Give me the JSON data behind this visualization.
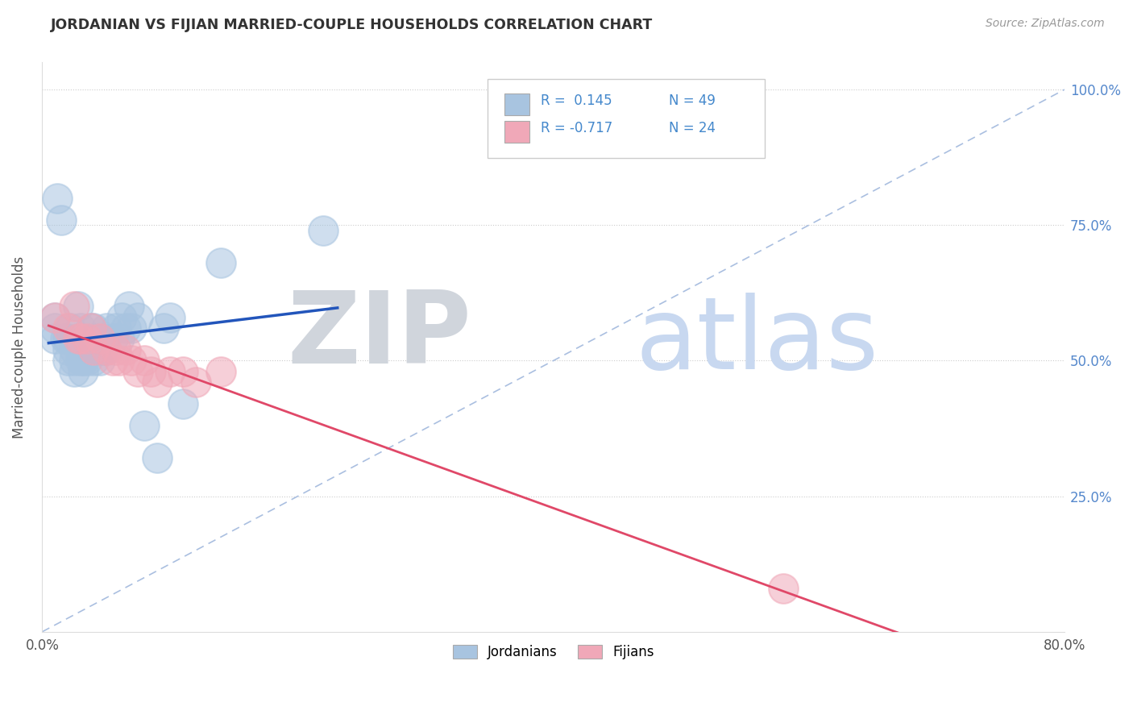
{
  "title": "JORDANIAN VS FIJIAN MARRIED-COUPLE HOUSEHOLDS CORRELATION CHART",
  "source": "Source: ZipAtlas.com",
  "ylabel": "Married-couple Households",
  "xlim": [
    0.0,
    0.8
  ],
  "ylim": [
    0.0,
    1.05
  ],
  "yticks": [
    0.0,
    0.25,
    0.5,
    0.75,
    1.0
  ],
  "yticklabels": [
    "",
    "25.0%",
    "50.0%",
    "75.0%",
    "100.0%"
  ],
  "blue_color": "#a8c4e0",
  "pink_color": "#f0a8b8",
  "blue_line_color": "#2255bb",
  "pink_line_color": "#e04868",
  "diagonal_color": "#aabfe0",
  "jordanians_x": [
    0.01,
    0.01,
    0.01,
    0.012,
    0.015,
    0.018,
    0.02,
    0.02,
    0.02,
    0.022,
    0.025,
    0.025,
    0.025,
    0.028,
    0.028,
    0.03,
    0.03,
    0.03,
    0.03,
    0.032,
    0.032,
    0.035,
    0.035,
    0.038,
    0.038,
    0.04,
    0.04,
    0.04,
    0.042,
    0.045,
    0.045,
    0.048,
    0.05,
    0.05,
    0.055,
    0.058,
    0.06,
    0.062,
    0.065,
    0.068,
    0.07,
    0.075,
    0.08,
    0.09,
    0.095,
    0.1,
    0.11,
    0.14,
    0.22
  ],
  "jordanians_y": [
    0.54,
    0.56,
    0.58,
    0.8,
    0.76,
    0.54,
    0.5,
    0.52,
    0.54,
    0.56,
    0.48,
    0.5,
    0.52,
    0.54,
    0.6,
    0.5,
    0.52,
    0.54,
    0.56,
    0.48,
    0.5,
    0.5,
    0.54,
    0.52,
    0.56,
    0.5,
    0.52,
    0.56,
    0.54,
    0.5,
    0.52,
    0.52,
    0.52,
    0.56,
    0.54,
    0.56,
    0.54,
    0.58,
    0.56,
    0.6,
    0.56,
    0.58,
    0.38,
    0.32,
    0.56,
    0.58,
    0.42,
    0.68,
    0.74
  ],
  "fijians_x": [
    0.01,
    0.02,
    0.025,
    0.028,
    0.03,
    0.035,
    0.038,
    0.04,
    0.045,
    0.05,
    0.055,
    0.058,
    0.06,
    0.065,
    0.07,
    0.075,
    0.08,
    0.085,
    0.09,
    0.1,
    0.11,
    0.12,
    0.14,
    0.58
  ],
  "fijians_y": [
    0.58,
    0.56,
    0.6,
    0.54,
    0.54,
    0.54,
    0.56,
    0.52,
    0.54,
    0.52,
    0.5,
    0.52,
    0.5,
    0.52,
    0.5,
    0.48,
    0.5,
    0.48,
    0.46,
    0.48,
    0.48,
    0.46,
    0.48,
    0.08
  ]
}
